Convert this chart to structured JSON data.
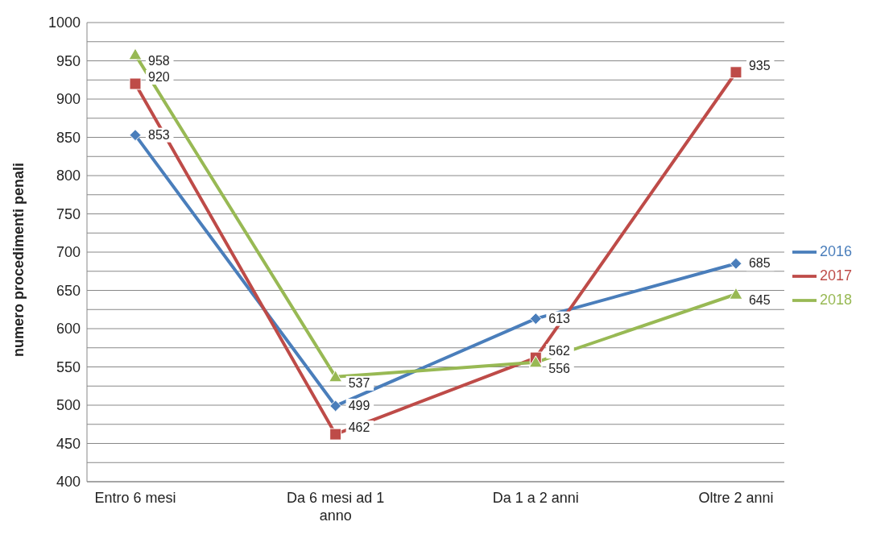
{
  "chart_data": {
    "type": "line",
    "ylabel": "numero procedimenti penali",
    "categories": [
      "Entro 6 mesi",
      "Da 6 mesi ad 1 anno",
      "Da 1 a 2 anni",
      "Oltre 2 anni"
    ],
    "series": [
      {
        "name": "2016",
        "color": "#4a7ebb",
        "marker": "diamond",
        "values": [
          853,
          499,
          613,
          685
        ]
      },
      {
        "name": "2017",
        "color": "#be4b48",
        "marker": "square",
        "values": [
          920,
          462,
          562,
          935
        ]
      },
      {
        "name": "2018",
        "color": "#98b954",
        "marker": "triangle",
        "values": [
          958,
          537,
          556,
          645
        ]
      }
    ],
    "ylim": [
      400,
      1000
    ],
    "yticks": [
      400,
      {
        "value": 425,
        "label": null
      },
      450,
      {
        "value": 475,
        "label": null
      },
      500,
      {
        "value": 525,
        "label": null
      },
      550,
      {
        "value": 575,
        "label": null
      },
      600,
      {
        "value": 625,
        "label": null
      },
      650,
      {
        "value": 675,
        "label": null
      },
      700,
      {
        "value": 725,
        "label": null
      },
      750,
      {
        "value": 775,
        "label": null
      },
      800,
      {
        "value": 825,
        "label": null
      },
      850,
      {
        "value": 875,
        "label": null
      },
      900,
      {
        "value": 925,
        "label": null
      },
      950,
      {
        "value": 975,
        "label": null
      },
      1000
    ],
    "grid": "y",
    "legend": "right",
    "data_labels": true,
    "line_style": "solid"
  }
}
